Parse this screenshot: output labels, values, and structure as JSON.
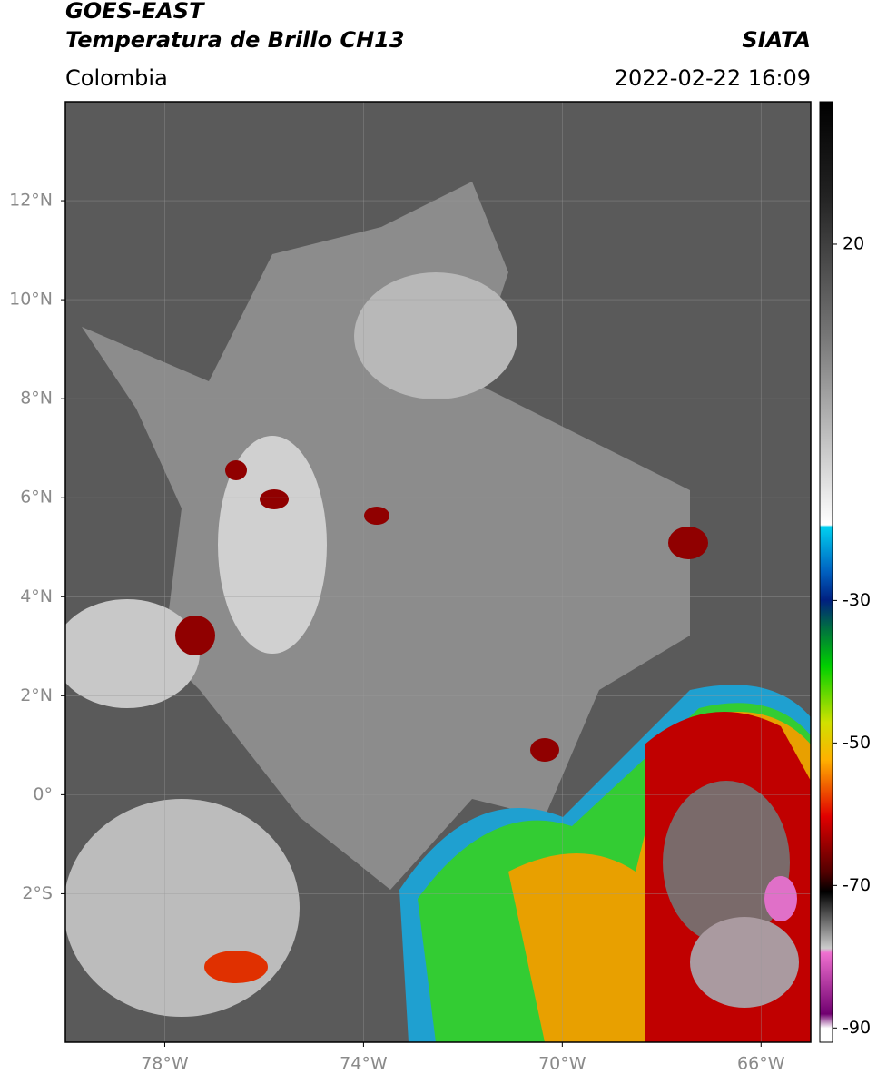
{
  "header": {
    "title": "GOES-EAST",
    "subtitle": "Temperatura de Brillo CH13",
    "source": "SIATA",
    "region": "Colombia",
    "datetime": "2022-02-22 16:09"
  },
  "map": {
    "xlim": [
      -80,
      -65
    ],
    "ylim": [
      -5,
      14
    ],
    "xticks": [
      {
        "value": -78,
        "label": "78°W"
      },
      {
        "value": -74,
        "label": "74°W"
      },
      {
        "value": -70,
        "label": "70°W"
      },
      {
        "value": -66,
        "label": "66°W"
      }
    ],
    "yticks": [
      {
        "value": 12,
        "label": "12°N"
      },
      {
        "value": 10,
        "label": "10°N"
      },
      {
        "value": 8,
        "label": "8°N"
      },
      {
        "value": 6,
        "label": "6°N"
      },
      {
        "value": 4,
        "label": "4°N"
      },
      {
        "value": 2,
        "label": "2°N"
      },
      {
        "value": 0,
        "label": "0°"
      },
      {
        "value": -2,
        "label": "2°S"
      }
    ],
    "grid": true
  },
  "colorbar": {
    "lim": [
      -92,
      40
    ],
    "ticks": [
      20,
      -30,
      -50,
      -70,
      -90
    ]
  }
}
